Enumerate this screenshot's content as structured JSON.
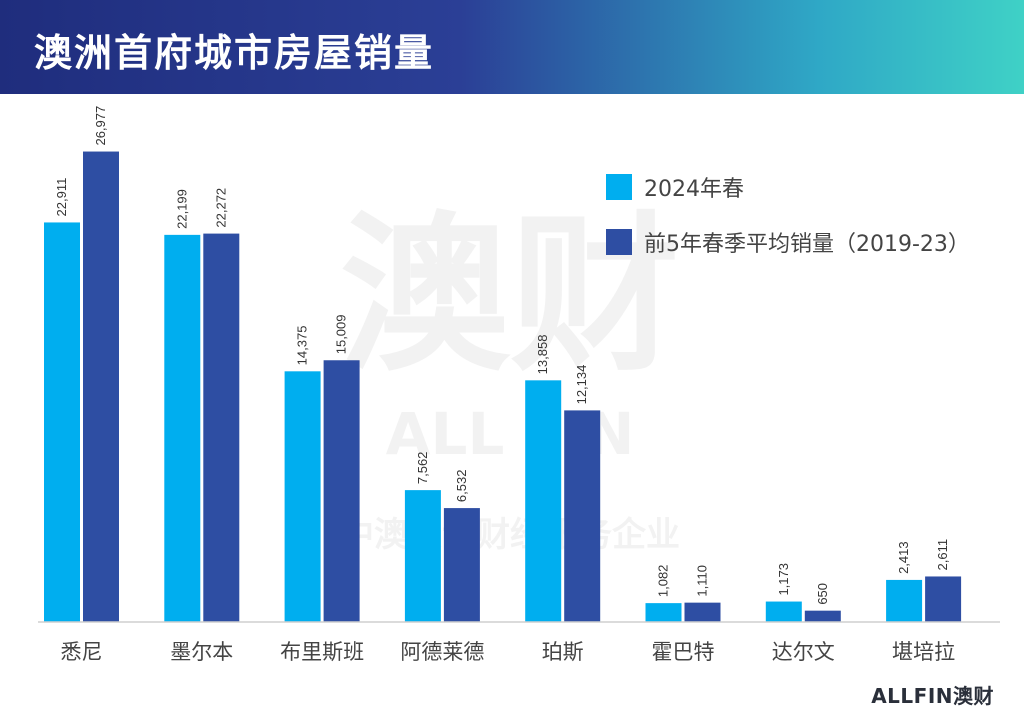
{
  "header": {
    "title": "澳洲首府城市房屋销量"
  },
  "colors": {
    "series1": "#00aeef",
    "series2": "#2e4ea3"
  },
  "watermark": {
    "big": "澳财",
    "sub": "ALL FIN",
    "slogan": "中澳双语财经服务企业"
  },
  "footer": {
    "logo": "ALLFIN澳财"
  },
  "chart_data": {
    "type": "bar",
    "categories": [
      "悉尼",
      "墨尔本",
      "布里斯班",
      "阿德莱德",
      "珀斯",
      "霍巴特",
      "达尔文",
      "堪培拉"
    ],
    "series": [
      {
        "name": "2024年春",
        "values": [
          22911,
          22199,
          14375,
          7562,
          13858,
          1082,
          1173,
          2413
        ],
        "labels": [
          "22,911",
          "22,199",
          "14,375",
          "7,562",
          "13,858",
          "1,082",
          "1,173",
          "2,413"
        ]
      },
      {
        "name": "前5年春季平均销量（2019-23）",
        "values": [
          26977,
          22272,
          15009,
          6532,
          12134,
          1110,
          650,
          2611
        ],
        "labels": [
          "26,977",
          "22,272",
          "15,009",
          "6,532",
          "12,134",
          "1,110",
          "650",
          "2,611"
        ]
      }
    ],
    "ylim": [
      0,
      30000
    ],
    "legend": "top-right",
    "grid": false
  }
}
